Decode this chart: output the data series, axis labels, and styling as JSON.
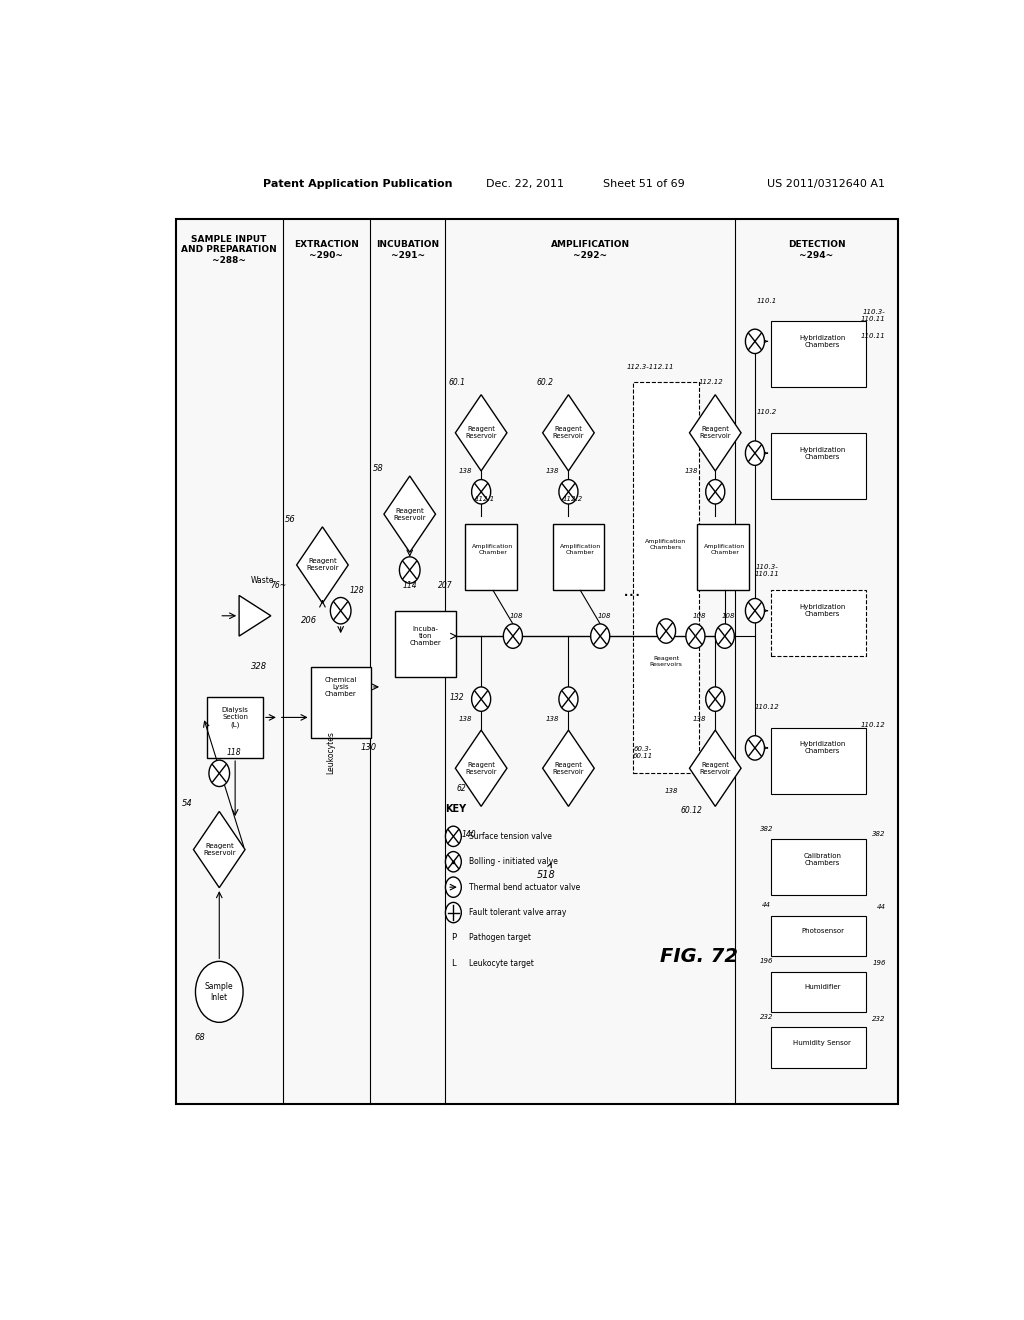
{
  "title_header": "Patent Application Publication",
  "date_header": "Dec. 22, 2011",
  "sheet_header": "Sheet 51 of 69",
  "patent_header": "US 2011/0312640 A1",
  "fig_label": "FIG. 72",
  "bg_color": "#ffffff"
}
